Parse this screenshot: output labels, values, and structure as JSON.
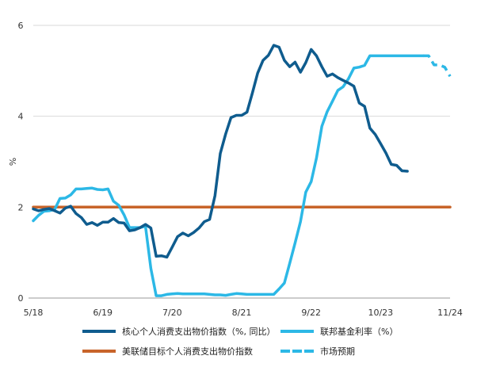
{
  "colors": {
    "core_pce": "#0F5C8E",
    "fed_funds": "#2CB8E6",
    "target": "#C8642A",
    "grid": "#D9D9D9"
  },
  "legend": {
    "core_pce": "核心个人消费支出物价指数（%, 同比）",
    "fed_funds": "联邦基金利率（%）",
    "target": "美联储目标个人消费支出物价指数",
    "market": "市场预期"
  },
  "chart_data": {
    "type": "line",
    "ylabel": "%",
    "ylim": [
      0,
      6
    ],
    "yticks": [
      0,
      2,
      4,
      6
    ],
    "xlim": [
      "2018-05",
      "2024-11"
    ],
    "xticks": [
      "5/18",
      "6/19",
      "7/20",
      "8/21",
      "9/22",
      "10/23",
      "11/24"
    ],
    "grid": "horizontal",
    "legend_position": "bottom",
    "series": [
      {
        "name": "核心个人消费支出物价指数（%, 同比）",
        "style": "solid",
        "x": [
          "2018-05",
          "2018-06",
          "2018-07",
          "2018-08",
          "2018-09",
          "2018-10",
          "2018-11",
          "2018-12",
          "2019-01",
          "2019-02",
          "2019-03",
          "2019-04",
          "2019-05",
          "2019-06",
          "2019-07",
          "2019-08",
          "2019-09",
          "2019-10",
          "2019-11",
          "2019-12",
          "2020-01",
          "2020-02",
          "2020-03",
          "2020-04",
          "2020-05",
          "2020-06",
          "2020-07",
          "2020-08",
          "2020-09",
          "2020-10",
          "2020-11",
          "2020-12",
          "2021-01",
          "2021-02",
          "2021-03",
          "2021-04",
          "2021-05",
          "2021-06",
          "2021-07",
          "2021-08",
          "2021-09",
          "2021-10",
          "2021-11",
          "2021-12",
          "2022-01",
          "2022-02",
          "2022-03",
          "2022-04",
          "2022-05",
          "2022-06",
          "2022-07",
          "2022-08",
          "2022-09",
          "2022-10",
          "2022-11",
          "2022-12",
          "2023-01",
          "2023-02",
          "2023-03",
          "2023-04",
          "2023-05",
          "2023-06",
          "2023-07",
          "2023-08",
          "2023-09",
          "2023-10",
          "2023-11",
          "2023-12",
          "2024-01",
          "2024-02",
          "2024-03"
        ],
        "values": [
          1.96,
          1.92,
          1.95,
          1.97,
          1.92,
          1.87,
          1.98,
          2.02,
          1.86,
          1.77,
          1.62,
          1.66,
          1.6,
          1.67,
          1.67,
          1.75,
          1.66,
          1.65,
          1.48,
          1.5,
          1.55,
          1.62,
          1.54,
          0.92,
          0.93,
          0.9,
          1.12,
          1.35,
          1.43,
          1.37,
          1.44,
          1.54,
          1.68,
          1.73,
          2.25,
          3.18,
          3.61,
          3.97,
          4.02,
          4.02,
          4.09,
          4.51,
          4.95,
          5.23,
          5.34,
          5.56,
          5.52,
          5.23,
          5.09,
          5.19,
          4.97,
          5.18,
          5.47,
          5.33,
          5.09,
          4.88,
          4.93,
          4.85,
          4.79,
          4.73,
          4.66,
          4.29,
          4.22,
          3.74,
          3.6,
          3.4,
          3.19,
          2.94,
          2.92,
          2.8,
          2.79
        ]
      },
      {
        "name": "联邦基金利率（%）",
        "style": "solid",
        "x": [
          "2018-05",
          "2018-06",
          "2018-07",
          "2018-08",
          "2018-09",
          "2018-10",
          "2018-11",
          "2018-12",
          "2019-01",
          "2019-02",
          "2019-03",
          "2019-04",
          "2019-05",
          "2019-06",
          "2019-07",
          "2019-08",
          "2019-09",
          "2019-10",
          "2019-11",
          "2019-12",
          "2020-01",
          "2020-02",
          "2020-03",
          "2020-04",
          "2020-05",
          "2020-06",
          "2020-07",
          "2020-08",
          "2020-09",
          "2020-10",
          "2020-11",
          "2020-12",
          "2021-01",
          "2021-02",
          "2021-03",
          "2021-04",
          "2021-05",
          "2021-06",
          "2021-07",
          "2021-08",
          "2021-09",
          "2021-10",
          "2021-11",
          "2021-12",
          "2022-01",
          "2022-02",
          "2022-03",
          "2022-04",
          "2022-05",
          "2022-06",
          "2022-07",
          "2022-08",
          "2022-09",
          "2022-10",
          "2022-11",
          "2022-12",
          "2023-01",
          "2023-02",
          "2023-03",
          "2023-04",
          "2023-05",
          "2023-06",
          "2023-07",
          "2023-08",
          "2023-09",
          "2023-10",
          "2023-11",
          "2023-12",
          "2024-01",
          "2024-02",
          "2024-03",
          "2024-04",
          "2024-05",
          "2024-06"
        ],
        "values": [
          1.7,
          1.82,
          1.91,
          1.92,
          1.95,
          2.19,
          2.2,
          2.27,
          2.4,
          2.4,
          2.41,
          2.42,
          2.39,
          2.38,
          2.4,
          2.13,
          2.04,
          1.83,
          1.55,
          1.55,
          1.55,
          1.58,
          0.65,
          0.05,
          0.05,
          0.08,
          0.09,
          0.1,
          0.09,
          0.09,
          0.09,
          0.09,
          0.09,
          0.08,
          0.07,
          0.07,
          0.06,
          0.08,
          0.1,
          0.09,
          0.08,
          0.08,
          0.08,
          0.08,
          0.08,
          0.08,
          0.2,
          0.33,
          0.77,
          1.21,
          1.68,
          2.33,
          2.56,
          3.08,
          3.78,
          4.1,
          4.33,
          4.57,
          4.65,
          4.83,
          5.06,
          5.08,
          5.12,
          5.33,
          5.33,
          5.33,
          5.33,
          5.33,
          5.33,
          5.33,
          5.33,
          5.33,
          5.33,
          5.33
        ]
      },
      {
        "name": "市场预期",
        "style": "dashed",
        "x": [
          "2024-06",
          "2024-07",
          "2024-08",
          "2024-09",
          "2024-10",
          "2024-11"
        ],
        "values": [
          5.33,
          5.33,
          5.13,
          5.13,
          5.08,
          4.88
        ]
      },
      {
        "name": "美联储目标个人消费支出物价指数",
        "style": "solid",
        "x": [
          "2018-05",
          "2024-11"
        ],
        "values": [
          2.0,
          2.0
        ]
      }
    ]
  }
}
